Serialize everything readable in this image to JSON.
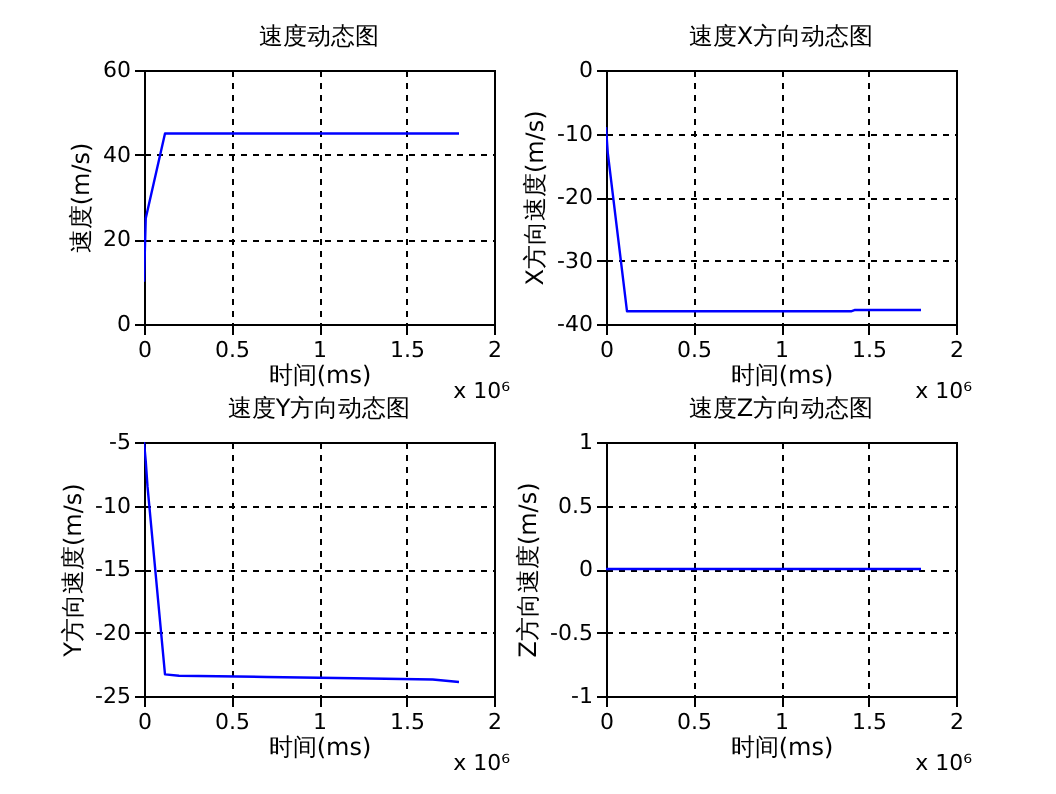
{
  "chart_data": [
    {
      "type": "line",
      "title": "速度动态图",
      "xlabel": "时间(ms)",
      "ylabel": "速度(m/s)",
      "annotations": [
        "x 10⁶"
      ],
      "xlim": [
        0,
        2
      ],
      "xticks": [
        0,
        0.5,
        1,
        1.5,
        2
      ],
      "ylim": [
        0,
        60
      ],
      "yticks": [
        0,
        20,
        40,
        60
      ],
      "grid": true,
      "series": [
        {
          "color": "#0000ff",
          "x": [
            0,
            0.01,
            0.12,
            1.8
          ],
          "values": [
            10,
            25,
            45,
            45
          ]
        }
      ]
    },
    {
      "type": "line",
      "title": "速度X方向动态图",
      "xlabel": "时间(ms)",
      "ylabel": "X方向速度(m/s)",
      "annotations": [
        "x 10⁶"
      ],
      "xlim": [
        0,
        2
      ],
      "xticks": [
        0,
        0.5,
        1,
        1.5,
        2
      ],
      "ylim": [
        -40,
        0
      ],
      "yticks": [
        -40,
        -30,
        -20,
        -10,
        0
      ],
      "grid": true,
      "series": [
        {
          "color": "#0000ff",
          "x": [
            0,
            0.01,
            0.12,
            1.4,
            1.42,
            1.8
          ],
          "values": [
            -9,
            -13,
            -38,
            -38,
            -37.8,
            -37.8
          ]
        }
      ]
    },
    {
      "type": "line",
      "title": "速度Y方向动态图",
      "xlabel": "时间(ms)",
      "ylabel": "Y方向速度(m/s)",
      "annotations": [
        "x 10⁶"
      ],
      "xlim": [
        0,
        2
      ],
      "xticks": [
        0,
        0.5,
        1,
        1.5,
        2
      ],
      "ylim": [
        -25,
        -5
      ],
      "yticks": [
        -25,
        -20,
        -15,
        -10,
        -5
      ],
      "grid": true,
      "series": [
        {
          "color": "#0000ff",
          "x": [
            0,
            0.01,
            0.02,
            0.12,
            0.2,
            0.7,
            1.2,
            1.65,
            1.8
          ],
          "values": [
            -5,
            -6.5,
            -8.5,
            -23.3,
            -23.4,
            -23.5,
            -23.6,
            -23.7,
            -23.9
          ]
        }
      ]
    },
    {
      "type": "line",
      "title": "速度Z方向动态图",
      "xlabel": "时间(ms)",
      "ylabel": "Z方向速度(m/s)",
      "annotations": [
        "x 10⁶"
      ],
      "xlim": [
        0,
        2
      ],
      "xticks": [
        0,
        0.5,
        1,
        1.5,
        2
      ],
      "ylim": [
        -1,
        1
      ],
      "yticks": [
        -1,
        -0.5,
        0,
        0.5,
        1
      ],
      "grid": true,
      "series": [
        {
          "color": "#0000ff",
          "x": [
            0,
            1.8
          ],
          "values": [
            0,
            0
          ]
        }
      ]
    }
  ]
}
